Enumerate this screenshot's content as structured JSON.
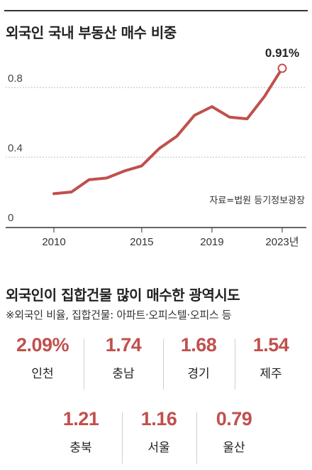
{
  "header": {
    "title": "외국인 국내 부동산 매수 비중"
  },
  "chart_data": {
    "type": "line",
    "title": "외국인 국내 부동산 매수 비중",
    "x": [
      2010,
      2011,
      2012,
      2013,
      2014,
      2015,
      2016,
      2017,
      2018,
      2019,
      2020,
      2021,
      2022,
      2023
    ],
    "series": [
      {
        "values": [
          0.19,
          0.2,
          0.27,
          0.28,
          0.32,
          0.35,
          0.45,
          0.52,
          0.64,
          0.69,
          0.63,
          0.62,
          0.75,
          0.91
        ]
      }
    ],
    "x_ticks": [
      "2010",
      "2015",
      "2019",
      "2023년"
    ],
    "x_tick_values": [
      2010,
      2015,
      2019,
      2023
    ],
    "y_ticks": [
      "0",
      "0.4",
      "0.8"
    ],
    "y_tick_values": [
      0,
      0.4,
      0.8
    ],
    "ylim": [
      0,
      1.05
    ],
    "annotation": "0.91%",
    "source": "자료=법원 등기정보광장",
    "line_color": "#c0504d"
  },
  "section": {
    "title": "외국인이 집합건물 많이 매수한 광역시도",
    "note": "※외국인 비율, 집합건물: 아파트·오피스텔·오피스 등",
    "regions": [
      {
        "value": "2.09%",
        "name": "인천"
      },
      {
        "value": "1.74",
        "name": "충남"
      },
      {
        "value": "1.68",
        "name": "경기"
      },
      {
        "value": "1.54",
        "name": "제주"
      },
      {
        "value": "1.21",
        "name": "충북"
      },
      {
        "value": "1.16",
        "name": "서울"
      },
      {
        "value": "0.79",
        "name": "울산"
      }
    ]
  }
}
